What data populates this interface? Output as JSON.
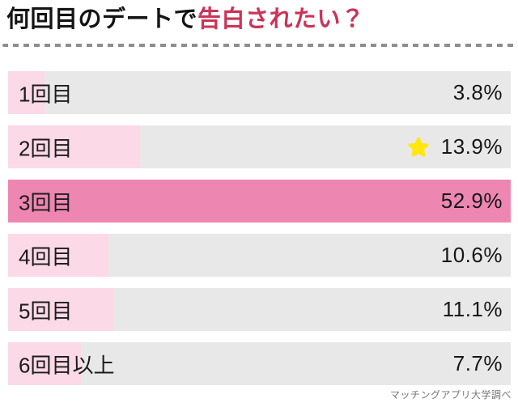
{
  "title": {
    "plain": "何回目のデートで",
    "accent": "告白されたい？"
  },
  "footer": {
    "source": "マッチングアプリ大学調べ"
  },
  "icons": {
    "star": "star-icon"
  },
  "colors": {
    "accent_text": "#cc3357",
    "track": "#e9e8e8",
    "fill": "#fbd9e6",
    "highlight": "#ee86b2",
    "star": "#ffe70f",
    "dash": "#8e8e8e",
    "footer_text": "#777777"
  },
  "chart_data": {
    "type": "bar",
    "orientation": "horizontal",
    "title": "何回目のデートで告白されたい？",
    "categories": [
      "1回目",
      "2回目",
      "3回目",
      "4回目",
      "5回目",
      "6回目以上"
    ],
    "values": [
      3.8,
      13.9,
      52.9,
      10.6,
      11.1,
      7.7
    ],
    "value_labels": [
      "3.8%",
      "13.9%",
      "52.9%",
      "10.6%",
      "11.1%",
      "7.7%"
    ],
    "unit": "%",
    "highlighted_index": 2,
    "starred_index": 1,
    "xlim": [
      0,
      52.9
    ],
    "grid": false,
    "legend": false,
    "layout_note": "bar widths scaled so the max value (52.9%) spans the full track width"
  }
}
